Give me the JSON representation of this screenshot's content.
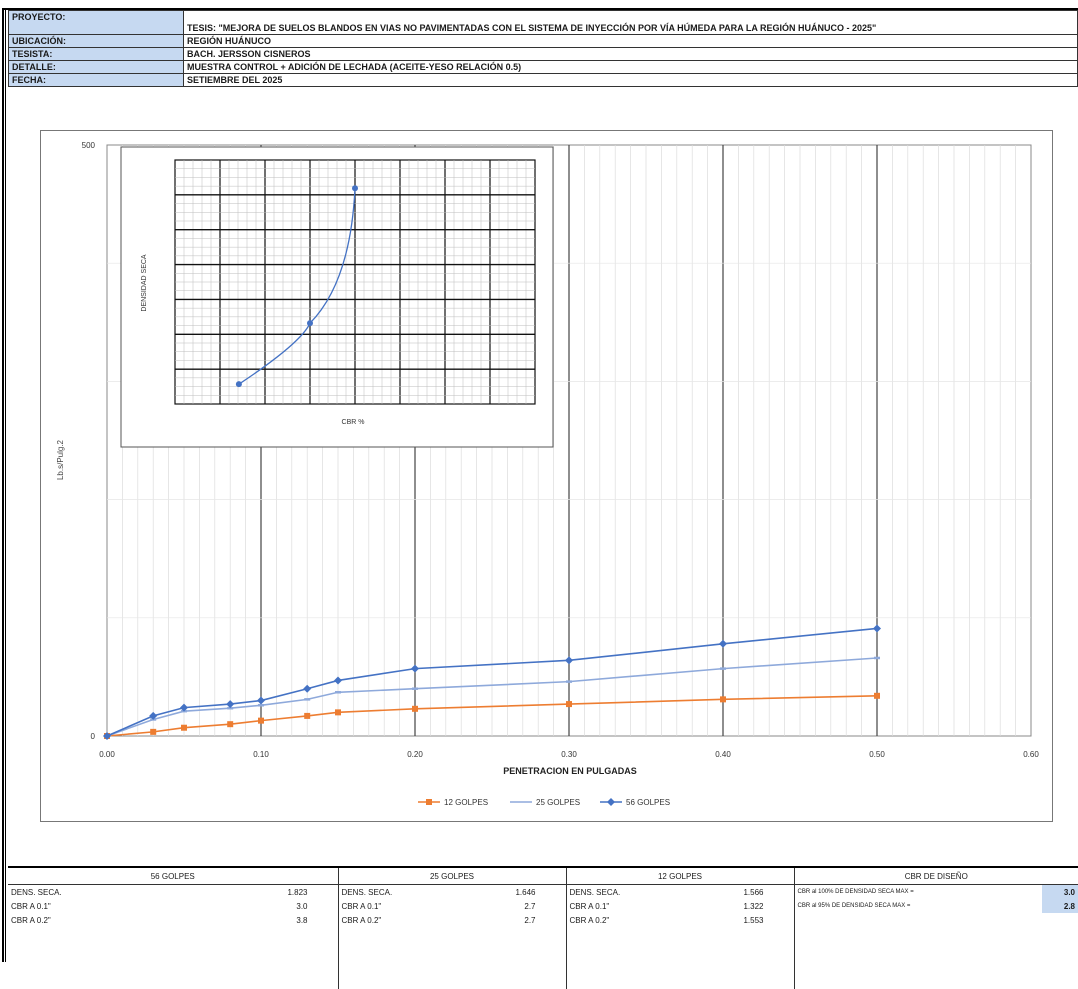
{
  "header": {
    "rows": [
      {
        "label": "PROYECTO:",
        "value": "TESIS: \"MEJORA DE SUELOS BLANDOS EN VIAS NO PAVIMENTADAS CON EL SISTEMA DE INYECCIÓN POR VÍA HÚMEDA PARA LA REGIÓN HUÁNUCO - 2025\""
      },
      {
        "label": "UBICACIÓN:",
        "value": "REGIÓN HUÁNUCO"
      },
      {
        "label": "TESISTA:",
        "value": "BACH. JERSSON CISNEROS"
      },
      {
        "label": "DETALLE:",
        "value": "MUESTRA CONTROL + ADICIÓN DE LECHADA (ACEITE-YESO RELACIÓN 0.5)"
      },
      {
        "label": "FECHA:",
        "value": "SETIEMBRE DEL 2025"
      }
    ]
  },
  "colors": {
    "accent": "#c6d9f1",
    "series_12": "#ed7d31",
    "series_25": "#8ea9db",
    "series_56": "#4472c4"
  },
  "chart_data": [
    {
      "type": "line",
      "title": "",
      "xlabel": "PENETRACION EN PULGADAS",
      "ylabel": "Lb.s/Pulg.2",
      "xlim": [
        0,
        0.6
      ],
      "ylim": [
        0,
        500
      ],
      "x_ticks": [
        "0.00",
        "0.10",
        "0.20",
        "0.30",
        "0.40",
        "0.50",
        "0.60"
      ],
      "y_ticks": [
        "0",
        "500"
      ],
      "legend_position": "bottom",
      "series": [
        {
          "name": "12 GOLPES",
          "color": "#ed7d31",
          "marker": "square",
          "points": [
            [
              0,
              0
            ],
            [
              0.03,
              3.5
            ],
            [
              0.05,
              7
            ],
            [
              0.08,
              10
            ],
            [
              0.1,
              13
            ],
            [
              0.13,
              17
            ],
            [
              0.15,
              20
            ],
            [
              0.2,
              23
            ],
            [
              0.3,
              27
            ],
            [
              0.4,
              31
            ],
            [
              0.5,
              34
            ]
          ]
        },
        {
          "name": "25 GOLPES",
          "color": "#8ea9db",
          "marker": "dash",
          "points": [
            [
              0,
              0
            ],
            [
              0.03,
              14
            ],
            [
              0.05,
              21
            ],
            [
              0.08,
              23.5
            ],
            [
              0.1,
              26
            ],
            [
              0.13,
              31
            ],
            [
              0.15,
              37
            ],
            [
              0.2,
              40
            ],
            [
              0.3,
              46
            ],
            [
              0.4,
              57
            ],
            [
              0.5,
              66
            ]
          ]
        },
        {
          "name": "56 GOLPES",
          "color": "#4472c4",
          "marker": "diamond",
          "points": [
            [
              0,
              0
            ],
            [
              0.03,
              17
            ],
            [
              0.05,
              24
            ],
            [
              0.08,
              27
            ],
            [
              0.1,
              30
            ],
            [
              0.13,
              40
            ],
            [
              0.15,
              47
            ],
            [
              0.2,
              57
            ],
            [
              0.3,
              64
            ],
            [
              0.4,
              78
            ],
            [
              0.5,
              91
            ]
          ]
        }
      ]
    },
    {
      "type": "line",
      "title": "",
      "xlabel": "CBR %",
      "ylabel": "DENSIDAD SECA",
      "series": [
        {
          "name": "",
          "color": "#4472c4",
          "points": [
            [
              2.71,
              1.566
            ],
            [
              3.5,
              1.646
            ],
            [
              4.0,
              1.823
            ]
          ]
        }
      ]
    }
  ],
  "summary": {
    "col56": {
      "title": "56 GOLPES",
      "rows": [
        {
          "label": "DENS. SECA.",
          "value": "1.823"
        },
        {
          "label": "CBR A 0.1\"",
          "value": "3.0"
        },
        {
          "label": "CBR A 0.2\"",
          "value": "3.8"
        }
      ]
    },
    "col25": {
      "title": "25 GOLPES",
      "rows": [
        {
          "label": "DENS. SECA.",
          "value": "1.646"
        },
        {
          "label": "CBR A 0.1\"",
          "value": "2.7"
        },
        {
          "label": "CBR A 0.2\"",
          "value": "2.7"
        }
      ]
    },
    "col12": {
      "title": "12 GOLPES",
      "rows": [
        {
          "label": "DENS. SECA.",
          "value": "1.566"
        },
        {
          "label": "CBR A 0.1\"",
          "value": "1.322"
        },
        {
          "label": "CBR A 0.2\"",
          "value": "1.553"
        }
      ]
    },
    "design": {
      "title": "CBR DE DISEÑO",
      "rows": [
        {
          "label": "CBR al 100% DE DENSIDAD SECA MAX =",
          "value": "3.0"
        },
        {
          "label": "CBR al 95% DE DENSIDAD SECA MAX =",
          "value": "2.8"
        }
      ]
    }
  }
}
